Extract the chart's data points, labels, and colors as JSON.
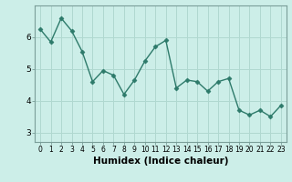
{
  "x": [
    0,
    1,
    2,
    3,
    4,
    5,
    6,
    7,
    8,
    9,
    10,
    11,
    12,
    13,
    14,
    15,
    16,
    17,
    18,
    19,
    20,
    21,
    22,
    23
  ],
  "y": [
    6.25,
    5.85,
    6.6,
    6.2,
    5.55,
    4.6,
    4.95,
    4.8,
    4.2,
    4.65,
    5.25,
    5.7,
    5.9,
    4.4,
    4.65,
    4.6,
    4.3,
    4.6,
    4.7,
    3.7,
    3.55,
    3.7,
    3.5,
    3.85
  ],
  "line_color": "#2d7a6a",
  "marker": "D",
  "markersize": 2.5,
  "linewidth": 1.0,
  "bg_color": "#cceee8",
  "grid_major_color": "#b0d8d0",
  "grid_minor_color": "#c8e8e2",
  "xlabel": "Humidex (Indice chaleur)",
  "xlabel_fontsize": 7.5,
  "yticks": [
    3,
    4,
    5,
    6
  ],
  "ylim": [
    2.7,
    7.0
  ],
  "xlim": [
    -0.5,
    23.5
  ],
  "xtick_fontsize": 5.5,
  "ytick_fontsize": 6.5
}
